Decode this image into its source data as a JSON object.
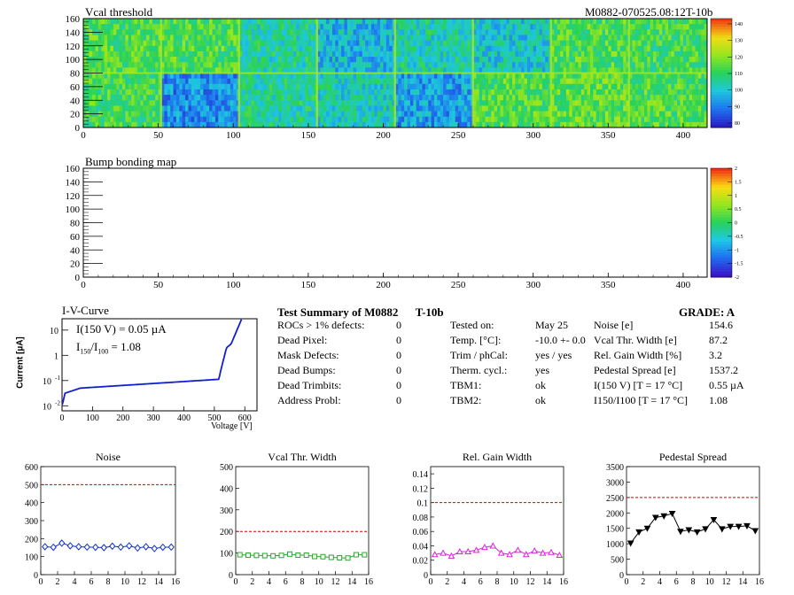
{
  "module_id": "M0882-070525.08:12T-10b",
  "heatmaps": [
    {
      "key": "vcal",
      "title": "Vcal threshold",
      "xticks": [
        0,
        50,
        100,
        150,
        200,
        250,
        300,
        350,
        400
      ],
      "yticks": [
        0,
        20,
        40,
        60,
        80,
        100,
        120,
        140,
        160
      ],
      "colorbar_ticks": [
        "80",
        "90",
        "100",
        "110",
        "120",
        "130",
        "140"
      ]
    },
    {
      "key": "bump",
      "title": "Bump bonding map",
      "xticks": [
        0,
        50,
        100,
        150,
        200,
        250,
        300,
        350,
        400
      ],
      "yticks": [
        0,
        20,
        40,
        60,
        80,
        100,
        120,
        140,
        160
      ],
      "colorbar_ticks": [
        "-2",
        "-1.5",
        "-1",
        "-0.5",
        "0",
        "0.5",
        "1",
        "1.5",
        "2"
      ]
    }
  ],
  "iv_curve": {
    "title": "I-V-Curve",
    "annot1": "I(150 V) = 0.05 µA",
    "annot2_prefix": "I",
    "annot2_sub1": "150",
    "annot2_mid": "/I",
    "annot2_sub2": "100",
    "annot2_val": " =  1.08",
    "ylabel": "Current [µA]",
    "xlabel": "Voltage [V]",
    "xticks": [
      "0",
      "100",
      "200",
      "300",
      "400",
      "500",
      "600"
    ],
    "yticks": [
      {
        "base": "10",
        "exp": "-2"
      },
      {
        "base": "10",
        "exp": "-1"
      },
      {
        "base": "1",
        "exp": ""
      },
      {
        "base": "10",
        "exp": ""
      }
    ]
  },
  "summary": {
    "title": "Test Summary of M0882",
    "tag": "T-10b",
    "grade_label": "GRADE:  A",
    "left_rows": [
      {
        "label": "ROCs > 1% defects:",
        "value": "0"
      },
      {
        "label": "Dead Pixel:",
        "value": "0"
      },
      {
        "label": "Mask Defects:",
        "value": "0"
      },
      {
        "label": "Dead Bumps:",
        "value": "0"
      },
      {
        "label": "Dead Trimbits:",
        "value": "0"
      },
      {
        "label": "Address Probl:",
        "value": "0"
      }
    ],
    "mid_rows": [
      {
        "label": "Tested on:",
        "value": "May 25"
      },
      {
        "label": "Temp. [°C]:",
        "value": "-10.0 +- 0.0"
      },
      {
        "label": "Trim / phCal:",
        "value": "yes / yes"
      },
      {
        "label": "Therm. cycl.:",
        "value": "yes"
      },
      {
        "label": "TBM1:",
        "value": "ok"
      },
      {
        "label": "TBM2:",
        "value": "ok"
      }
    ],
    "right_rows": [
      {
        "label": "Noise [e]",
        "value": "154.6"
      },
      {
        "label": "Vcal Thr. Width [e]",
        "value": "87.2"
      },
      {
        "label": "Rel. Gain Width [%]",
        "value": "3.2"
      },
      {
        "label": "Pedestal Spread [e]",
        "value": "1537.2"
      },
      {
        "label": "I(150 V) [T = 17 °C]",
        "value": "0.55 µA"
      },
      {
        "label": "I150/I100  [T = 17 °C]",
        "value": "1.08"
      }
    ]
  },
  "chart_data": [
    {
      "type": "line",
      "title": "Noise",
      "x": [
        0,
        1,
        2,
        3,
        4,
        5,
        6,
        7,
        8,
        9,
        10,
        11,
        12,
        13,
        14,
        15
      ],
      "values": [
        155,
        152,
        175,
        160,
        155,
        153,
        152,
        150,
        158,
        153,
        160,
        148,
        155,
        145,
        152,
        153
      ],
      "ylim": [
        0,
        600
      ],
      "yticks": [
        0,
        100,
        200,
        300,
        400,
        500,
        600
      ],
      "xticks": [
        0,
        2,
        4,
        6,
        8,
        10,
        12,
        14,
        16
      ],
      "cut": 500,
      "color": "#1030c8",
      "marker": "diamond"
    },
    {
      "type": "line",
      "title": "Vcal Thr. Width",
      "x": [
        0,
        1,
        2,
        3,
        4,
        5,
        6,
        7,
        8,
        9,
        10,
        11,
        12,
        13,
        14,
        15
      ],
      "values": [
        92,
        90,
        89,
        88,
        87,
        89,
        95,
        90,
        90,
        84,
        83,
        80,
        78,
        77,
        92,
        92
      ],
      "ylim": [
        0,
        500
      ],
      "yticks": [
        0,
        100,
        200,
        300,
        400,
        500
      ],
      "xticks": [
        0,
        2,
        4,
        6,
        8,
        10,
        12,
        14,
        16
      ],
      "cut": 200,
      "color": "#28a828",
      "marker": "square"
    },
    {
      "type": "line",
      "title": "Rel. Gain Width",
      "x": [
        0,
        1,
        2,
        3,
        4,
        5,
        6,
        7,
        8,
        9,
        10,
        11,
        12,
        13,
        14,
        15
      ],
      "values": [
        0.028,
        0.03,
        0.026,
        0.032,
        0.032,
        0.034,
        0.038,
        0.04,
        0.03,
        0.028,
        0.034,
        0.028,
        0.033,
        0.03,
        0.031,
        0.027
      ],
      "ylim": [
        0,
        0.15
      ],
      "yticks": [
        0,
        0.02,
        0.04,
        0.06,
        0.08,
        0.1,
        0.12,
        0.14
      ],
      "xticks": [
        0,
        2,
        4,
        6,
        8,
        10,
        12,
        14,
        16
      ],
      "cut": 0.1,
      "color": "#e020e0",
      "marker": "triangle"
    },
    {
      "type": "line",
      "title": "Pedestal Spread",
      "x": [
        0,
        1,
        2,
        3,
        4,
        5,
        6,
        7,
        8,
        9,
        10,
        11,
        12,
        13,
        14,
        15
      ],
      "values": [
        1020,
        1380,
        1500,
        1850,
        1900,
        1980,
        1400,
        1450,
        1380,
        1480,
        1780,
        1480,
        1560,
        1560,
        1580,
        1420
      ],
      "ylim": [
        0,
        3500
      ],
      "yticks": [
        0,
        500,
        1000,
        1500,
        2000,
        2500,
        3000,
        3500
      ],
      "xticks": [
        0,
        2,
        4,
        6,
        8,
        10,
        12,
        14,
        16
      ],
      "cut": 2500,
      "color": "#000000",
      "marker": "triangle-down"
    }
  ],
  "colors": {
    "cut_line": "#cc0000",
    "iv_line": "#1020d0"
  }
}
